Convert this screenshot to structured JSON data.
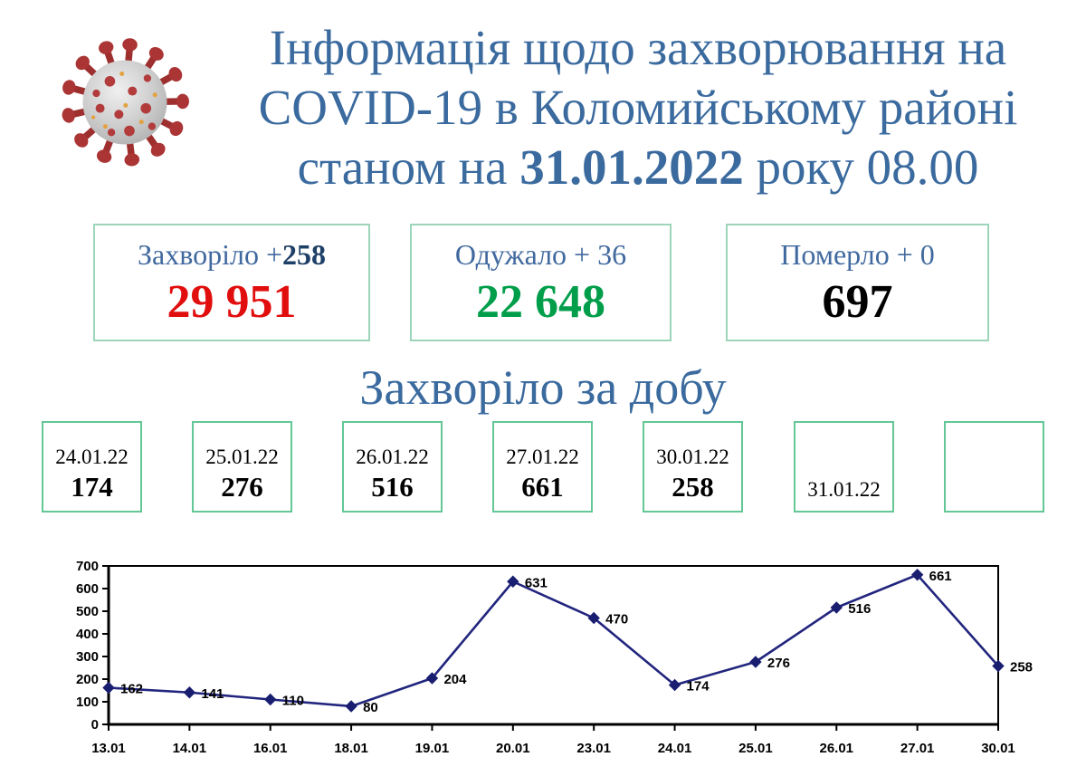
{
  "header": {
    "title_line1": "Інформація щодо захворювання на",
    "title_line2": "COVID-19 в Коломийському районі",
    "title_line3_prefix": "станом на ",
    "title_line3_bold": "31.01.2022",
    "title_line3_suffix": " року 08.00",
    "title_color": "#3a6a9e",
    "virus_icon": "coronavirus"
  },
  "stat_boxes": [
    {
      "label_prefix": "Захворіло +",
      "label_bold": "258",
      "value": "29 951",
      "value_color": "#e10e0e"
    },
    {
      "label_prefix": "Одужало + 36",
      "label_bold": "",
      "value": "22 648",
      "value_color": "#009e4a"
    },
    {
      "label_prefix": "Померло + 0",
      "label_bold": "",
      "value": "697",
      "value_color": "#000000"
    }
  ],
  "daily_section": {
    "title": "Захворіло за добу"
  },
  "date_boxes": [
    {
      "date": "24.01.22",
      "value": "174"
    },
    {
      "date": "25.01.22",
      "value": "276"
    },
    {
      "date": "26.01.22",
      "value": "516"
    },
    {
      "date": "27.01.22",
      "value": "661"
    },
    {
      "date": "30.01.22",
      "value": "258"
    },
    {
      "date": "31.01.22",
      "value": ""
    },
    {
      "date": "",
      "value": ""
    }
  ],
  "chart_data": {
    "type": "line",
    "title": "",
    "xlabel": "",
    "ylabel": "",
    "categories": [
      "13.01",
      "14.01",
      "16.01",
      "18.01",
      "19.01",
      "20.01",
      "23.01",
      "24.01",
      "25.01",
      "26.01",
      "27.01",
      "30.01"
    ],
    "values": [
      162,
      141,
      110,
      80,
      204,
      631,
      470,
      174,
      276,
      516,
      661,
      258
    ],
    "ylim": [
      0,
      700
    ],
    "ytick_step": 100,
    "grid": false,
    "legend": "none",
    "line_color": "#21257d",
    "marker": "diamond",
    "marker_color": "#1a1e70",
    "axis_color": "#000000",
    "label_color": "#000000"
  }
}
